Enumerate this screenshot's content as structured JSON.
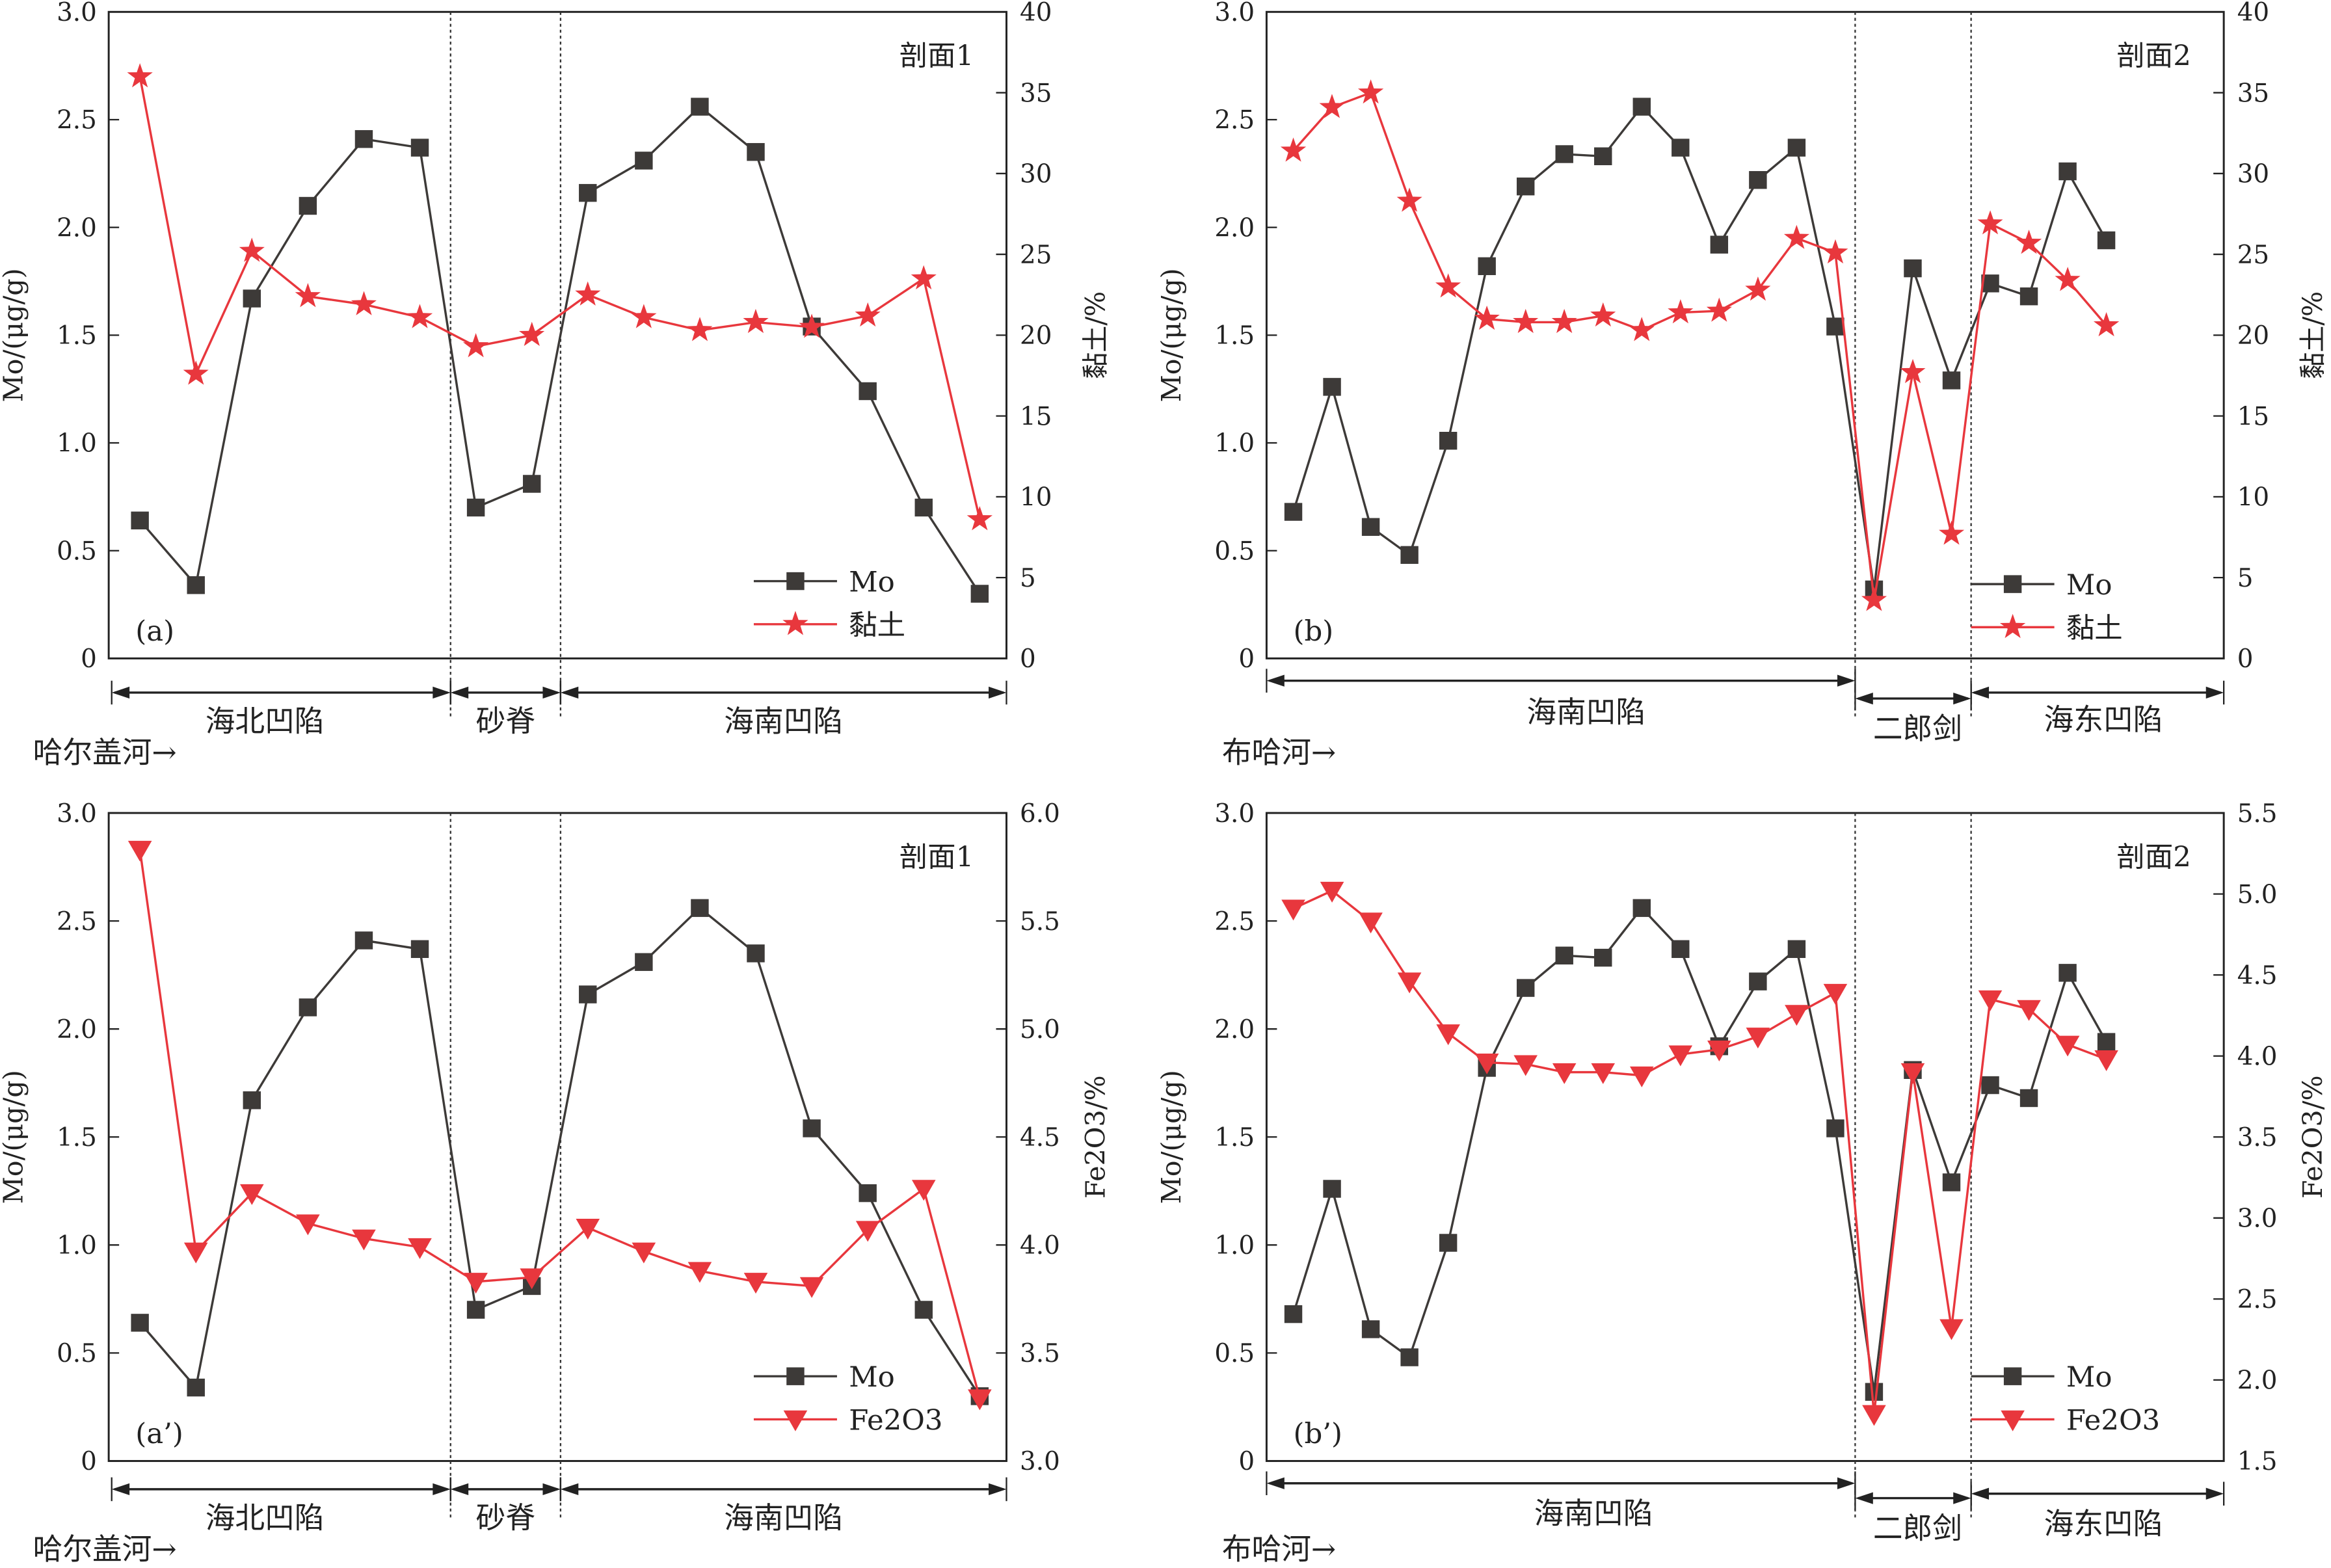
{
  "chart_data": [
    {
      "type": "line",
      "panel_label": "(a)",
      "section_title": "剖面1",
      "ylabel": "Mo/(μg/g)",
      "ylabel_right": "黏土/%",
      "ylim": [
        0,
        3.0
      ],
      "ylim_right": [
        0,
        40
      ],
      "yticks": [
        "0",
        "0.5",
        "1.0",
        "1.5",
        "2.0",
        "2.5",
        "3.0"
      ],
      "yticks_right": [
        "0",
        "5",
        "10",
        "15",
        "20",
        "25",
        "30",
        "35",
        "40"
      ],
      "legend_position": "bottom-right",
      "series": [
        {
          "name": "Mo",
          "axis": "left",
          "marker": "square",
          "color": "#3d3a38",
          "values": [
            0.64,
            0.34,
            1.67,
            2.1,
            2.41,
            2.37,
            0.7,
            0.81,
            2.16,
            2.31,
            2.56,
            2.35,
            1.54,
            1.24,
            0.7,
            0.3
          ]
        },
        {
          "name": "黏土",
          "axis": "right",
          "marker": "star",
          "color": "#e8373d",
          "values": [
            36.0,
            17.6,
            25.2,
            22.4,
            21.9,
            21.1,
            19.3,
            20.0,
            22.5,
            21.1,
            20.3,
            20.8,
            20.5,
            21.2,
            23.5,
            8.6
          ]
        }
      ],
      "regions": [
        "海北凹陷",
        "砂脊",
        "海南凹陷"
      ],
      "direction_label": "哈尔盖河→"
    },
    {
      "type": "line",
      "panel_label": "(b)",
      "section_title": "剖面2",
      "ylabel": "Mo/(μg/g)",
      "ylabel_right": "黏土/%",
      "ylim": [
        0,
        3.0
      ],
      "ylim_right": [
        0,
        40
      ],
      "yticks": [
        "0",
        "0.5",
        "1.0",
        "1.5",
        "2.0",
        "2.5",
        "3.0"
      ],
      "yticks_right": [
        "0",
        "5",
        "10",
        "15",
        "20",
        "25",
        "30",
        "35",
        "40"
      ],
      "legend_position": "bottom-right",
      "series": [
        {
          "name": "Mo",
          "axis": "left",
          "marker": "square",
          "color": "#3d3a38",
          "values": [
            0.68,
            1.26,
            0.61,
            0.48,
            1.01,
            1.82,
            2.19,
            2.34,
            2.33,
            2.56,
            2.37,
            1.92,
            2.22,
            2.37,
            1.54,
            0.32,
            1.81,
            1.29,
            1.74,
            1.68,
            2.26,
            1.94
          ]
        },
        {
          "name": "黏土",
          "axis": "right",
          "marker": "star",
          "color": "#e8373d",
          "values": [
            31.4,
            34.1,
            35.0,
            28.3,
            23.0,
            21.0,
            20.8,
            20.8,
            21.2,
            20.3,
            21.4,
            21.5,
            22.8,
            26.0,
            25.1,
            3.6,
            17.7,
            7.7,
            26.9,
            25.7,
            23.4,
            20.6
          ]
        }
      ],
      "regions": [
        "海南凹陷",
        "二郎剑",
        "海东凹陷"
      ],
      "direction_label": "布哈河→"
    },
    {
      "type": "line",
      "panel_label": "(a’)",
      "section_title": "剖面1",
      "ylabel": "Mo/(μg/g)",
      "ylabel_right": "Fe2O3/%",
      "ylim": [
        0,
        3.0
      ],
      "ylim_right": [
        3.0,
        6.0
      ],
      "yticks": [
        "0",
        "0.5",
        "1.0",
        "1.5",
        "2.0",
        "2.5",
        "3.0"
      ],
      "yticks_right": [
        "3.0",
        "3.5",
        "4.0",
        "4.5",
        "5.0",
        "5.5",
        "6.0"
      ],
      "legend_position": "bottom-right",
      "series": [
        {
          "name": "Mo",
          "axis": "left",
          "marker": "square",
          "color": "#3d3a38",
          "values": [
            0.64,
            0.34,
            1.67,
            2.1,
            2.41,
            2.37,
            0.7,
            0.81,
            2.16,
            2.31,
            2.56,
            2.35,
            1.54,
            1.24,
            0.7,
            0.3
          ]
        },
        {
          "name": "Fe2O3",
          "axis": "right",
          "marker": "triangle-down",
          "color": "#e8373d",
          "values": [
            5.83,
            3.97,
            4.24,
            4.1,
            4.03,
            3.99,
            3.83,
            3.85,
            4.08,
            3.97,
            3.88,
            3.83,
            3.81,
            4.07,
            4.26,
            3.29
          ]
        }
      ],
      "regions": [
        "海北凹陷",
        "砂脊",
        "海南凹陷"
      ],
      "direction_label": "哈尔盖河→"
    },
    {
      "type": "line",
      "panel_label": "(b’)",
      "section_title": "剖面2",
      "ylabel": "Mo/(μg/g)",
      "ylabel_right": "Fe2O3/%",
      "ylim": [
        0,
        3.0
      ],
      "ylim_right": [
        1.5,
        5.5
      ],
      "yticks": [
        "0",
        "0.5",
        "1.0",
        "1.5",
        "2.0",
        "2.5",
        "3.0"
      ],
      "yticks_right": [
        "1.5",
        "2.0",
        "2.5",
        "3.0",
        "3.5",
        "4.0",
        "4.5",
        "5.0",
        "5.5"
      ],
      "legend_position": "bottom-right",
      "series": [
        {
          "name": "Mo",
          "axis": "left",
          "marker": "square",
          "color": "#3d3a38",
          "values": [
            0.68,
            1.26,
            0.61,
            0.48,
            1.01,
            1.82,
            2.19,
            2.34,
            2.33,
            2.56,
            2.37,
            1.92,
            2.22,
            2.37,
            1.54,
            0.32,
            1.81,
            1.29,
            1.74,
            1.68,
            2.26,
            1.94
          ]
        },
        {
          "name": "Fe2O3",
          "axis": "right",
          "marker": "triangle-down",
          "color": "#e8373d",
          "values": [
            4.91,
            5.02,
            4.83,
            4.46,
            4.14,
            3.96,
            3.95,
            3.9,
            3.9,
            3.88,
            4.01,
            4.04,
            4.12,
            4.26,
            4.39,
            1.79,
            3.9,
            2.32,
            4.35,
            4.29,
            4.07,
            3.98
          ]
        }
      ],
      "regions": [
        "海南凹陷",
        "二郎剑",
        "海东凹陷"
      ],
      "direction_label": "布哈河→"
    }
  ]
}
